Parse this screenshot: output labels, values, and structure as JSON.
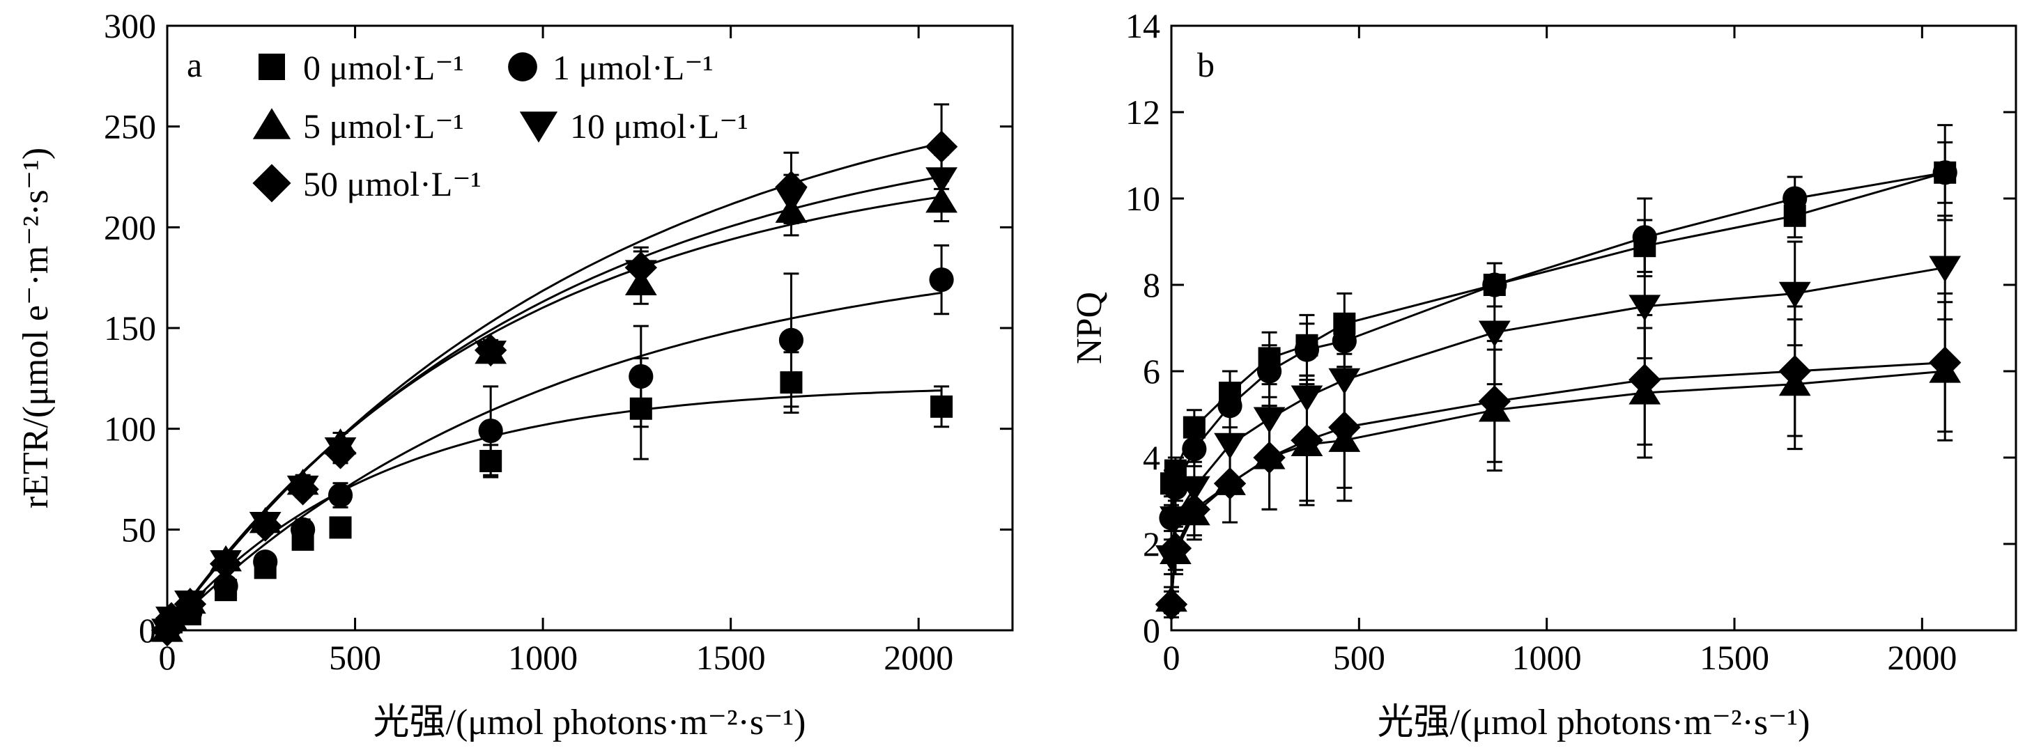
{
  "chart_data": [
    {
      "type": "scatter",
      "panel_label": "a",
      "xlabel": "光强/(μmol photons·m⁻²·s⁻¹)",
      "ylabel": "rETR/(μmol e⁻·m⁻²·s⁻¹)",
      "xlim": [
        0,
        2250
      ],
      "ylim": [
        0,
        300
      ],
      "xticks": [
        0,
        500,
        1000,
        1500,
        2000
      ],
      "yticks": [
        0,
        50,
        100,
        150,
        200,
        250,
        300
      ],
      "grid": false,
      "legend_placement": "top-left",
      "x": [
        0,
        11,
        61,
        156,
        261,
        361,
        461,
        861,
        1261,
        1661,
        2061
      ],
      "series": [
        {
          "name": "0 μmol·L⁻¹",
          "marker": "square",
          "values": [
            0,
            4,
            8,
            20,
            31,
            45,
            51,
            84,
            110,
            123,
            111
          ],
          "err": [
            0,
            1,
            2,
            3,
            3,
            4,
            4,
            8,
            25,
            15,
            10
          ],
          "fit": {
            "Pm": 122,
            "k": 0.0018
          }
        },
        {
          "name": "1 μmol·L⁻¹",
          "marker": "circle",
          "values": [
            0,
            4,
            9,
            22,
            34,
            50,
            67,
            99,
            126,
            144,
            174
          ],
          "err": [
            0,
            1,
            2,
            3,
            4,
            5,
            6,
            22,
            25,
            33,
            17
          ],
          "fit": {
            "Pm": 195,
            "k": 0.00095
          }
        },
        {
          "name": "5 μmol·L⁻¹",
          "marker": "triangle-up",
          "values": [
            0,
            6,
            14,
            35,
            54,
            73,
            93,
            138,
            172,
            208,
            213
          ],
          "err": [
            0,
            1,
            2,
            3,
            4,
            4,
            5,
            5,
            10,
            12,
            10
          ],
          "fit": {
            "Pm": 240,
            "k": 0.0011
          }
        },
        {
          "name": "10 μmol·L⁻¹",
          "marker": "triangle-down",
          "values": [
            0,
            6,
            14,
            34,
            53,
            71,
            90,
            138,
            178,
            214,
            224
          ],
          "err": [
            0,
            1,
            2,
            3,
            4,
            4,
            5,
            5,
            10,
            12,
            12
          ],
          "fit": {
            "Pm": 258,
            "k": 0.001
          }
        },
        {
          "name": "50 μmol·L⁻¹",
          "marker": "diamond",
          "values": [
            0,
            6,
            13,
            33,
            52,
            70,
            88,
            139,
            180,
            220,
            240
          ],
          "err": [
            0,
            1,
            2,
            3,
            4,
            4,
            5,
            5,
            10,
            17,
            21
          ],
          "fit": {
            "Pm": 290,
            "k": 0.00087
          }
        }
      ]
    },
    {
      "type": "scatter",
      "panel_label": "b",
      "xlabel": "光强/(μmol photons·m⁻²·s⁻¹)",
      "ylabel": "NPQ",
      "xlim": [
        0,
        2250
      ],
      "ylim": [
        0,
        14
      ],
      "xticks": [
        0,
        500,
        1000,
        1500,
        2000
      ],
      "yticks": [
        0,
        2,
        4,
        6,
        8,
        10,
        12,
        14
      ],
      "grid": false,
      "x": [
        0,
        11,
        61,
        156,
        261,
        361,
        461,
        861,
        1261,
        1661,
        2061
      ],
      "series": [
        {
          "marker": "square",
          "values": [
            3.4,
            3.7,
            4.7,
            5.5,
            6.3,
            6.6,
            7.1,
            8.0,
            8.9,
            9.6,
            10.6
          ],
          "err": [
            0.3,
            0.3,
            0.4,
            0.5,
            0.6,
            0.7,
            0.7,
            0.5,
            0.6,
            0.5,
            0.7
          ]
        },
        {
          "marker": "circle",
          "values": [
            2.6,
            3.3,
            4.2,
            5.2,
            6.0,
            6.5,
            6.7,
            8.0,
            9.1,
            10.0,
            10.6
          ],
          "err": [
            0.3,
            0.3,
            0.4,
            0.5,
            0.6,
            0.6,
            0.6,
            0.5,
            0.9,
            0.5,
            1.1
          ]
        },
        {
          "marker": "triangle-up",
          "values": [
            0.7,
            1.8,
            2.7,
            3.4,
            4.0,
            4.3,
            4.4,
            5.1,
            5.5,
            5.7,
            6.0
          ],
          "err": [
            0.3,
            0.5,
            0.6,
            0.9,
            1.2,
            1.4,
            1.4,
            1.4,
            1.5,
            1.5,
            1.6
          ]
        },
        {
          "marker": "triangle-down",
          "values": [
            1.7,
            2.6,
            3.3,
            4.3,
            4.9,
            5.4,
            5.8,
            6.9,
            7.5,
            7.8,
            8.4
          ],
          "err": [
            0.4,
            0.5,
            0.6,
            0.8,
            1.0,
            1.2,
            1.3,
            1.2,
            1.2,
            1.2,
            1.2
          ]
        },
        {
          "marker": "diamond",
          "values": [
            0.6,
            1.9,
            2.8,
            3.4,
            4.0,
            4.4,
            4.7,
            5.3,
            5.8,
            6.0,
            6.2
          ],
          "err": [
            0.3,
            0.5,
            0.6,
            0.9,
            1.2,
            1.4,
            1.4,
            1.4,
            1.5,
            1.5,
            1.6
          ]
        }
      ]
    }
  ]
}
